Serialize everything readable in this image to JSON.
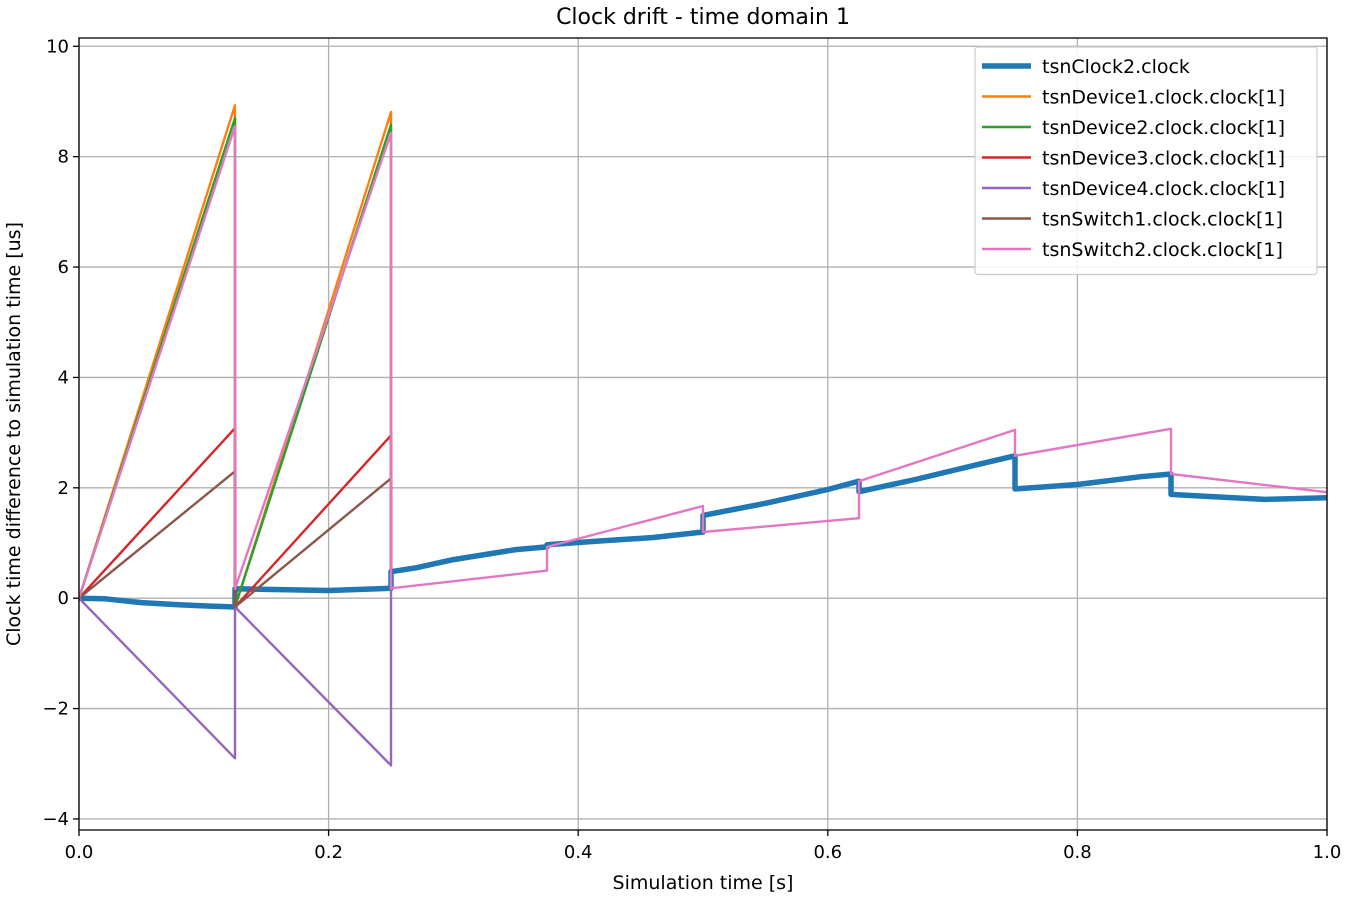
{
  "chart_data": {
    "type": "line",
    "title": "Clock drift - time domain 1",
    "xlabel": "Simulation time [s]",
    "ylabel": "Clock time difference to simulation time [us]",
    "xlim": [
      0.0,
      1.0
    ],
    "ylim": [
      -4.2,
      10.15
    ],
    "xticks": [
      0.0,
      0.2,
      0.4,
      0.6,
      0.8,
      1.0
    ],
    "xtick_labels": [
      "0.0",
      "0.2",
      "0.4",
      "0.6",
      "0.8",
      "1.0"
    ],
    "yticks": [
      -4,
      -2,
      0,
      2,
      4,
      6,
      8,
      10
    ],
    "ytick_labels": [
      "−4",
      "−2",
      "0",
      "2",
      "4",
      "6",
      "8",
      "10"
    ],
    "grid": true,
    "legend_position": "top-right",
    "series": [
      {
        "name": "tsnClock2.clock",
        "color": "#1f77b4",
        "emphasis": "thick",
        "x": [
          0.0,
          0.02,
          0.05,
          0.08,
          0.1,
          0.125,
          0.125,
          0.15,
          0.2,
          0.25,
          0.25,
          0.27,
          0.3,
          0.35,
          0.375,
          0.375,
          0.42,
          0.46,
          0.5,
          0.5,
          0.55,
          0.6,
          0.625,
          0.625,
          0.67,
          0.72,
          0.75,
          0.75,
          0.8,
          0.85,
          0.875,
          0.875,
          0.9,
          0.95,
          1.0
        ],
        "y": [
          0.0,
          -0.01,
          -0.08,
          -0.12,
          -0.14,
          -0.16,
          0.17,
          0.16,
          0.14,
          0.18,
          0.48,
          0.55,
          0.7,
          0.88,
          0.93,
          0.97,
          1.04,
          1.1,
          1.2,
          1.5,
          1.72,
          1.97,
          2.12,
          1.93,
          2.15,
          2.42,
          2.58,
          1.98,
          2.06,
          2.2,
          2.25,
          1.88,
          1.85,
          1.79,
          1.82
        ]
      },
      {
        "name": "tsnDevice1.clock.clock[1]",
        "color": "#ff7f0e",
        "x": [
          0.0,
          0.125,
          0.125,
          0.25,
          0.25
        ],
        "y": [
          0.0,
          8.93,
          -0.16,
          8.81,
          0.48
        ]
      },
      {
        "name": "tsnDevice2.clock.clock[1]",
        "color": "#2ca02c",
        "x": [
          0.0,
          0.125,
          0.125,
          0.25,
          0.25
        ],
        "y": [
          0.0,
          8.7,
          -0.16,
          8.58,
          0.48
        ]
      },
      {
        "name": "tsnDevice3.clock.clock[1]",
        "color": "#d62728",
        "x": [
          0.0,
          0.125,
          0.125,
          0.25,
          0.25
        ],
        "y": [
          0.0,
          3.08,
          -0.16,
          2.95,
          0.48
        ]
      },
      {
        "name": "tsnDevice4.clock.clock[1]",
        "color": "#9467bd",
        "x": [
          0.0,
          0.125,
          0.125,
          0.25,
          0.25
        ],
        "y": [
          0.0,
          -2.9,
          -0.16,
          -3.03,
          0.48
        ]
      },
      {
        "name": "tsnSwitch1.clock.clock[1]",
        "color": "#8c564b",
        "x": [
          0.0,
          0.125,
          0.125,
          0.25,
          0.25
        ],
        "y": [
          0.0,
          2.3,
          -0.16,
          2.17,
          0.48
        ]
      },
      {
        "name": "tsnSwitch2.clock.clock[1]",
        "color": "#e377c2",
        "x": [
          0.0,
          0.125,
          0.125,
          0.25,
          0.25,
          0.375,
          0.375,
          0.5,
          0.5,
          0.625,
          0.625,
          0.75,
          0.75,
          0.875,
          0.875,
          1.0
        ],
        "y": [
          0.0,
          8.55,
          0.17,
          8.43,
          0.18,
          0.5,
          0.93,
          1.67,
          1.2,
          1.45,
          2.12,
          3.05,
          2.58,
          3.07,
          2.25,
          1.92
        ]
      }
    ]
  }
}
